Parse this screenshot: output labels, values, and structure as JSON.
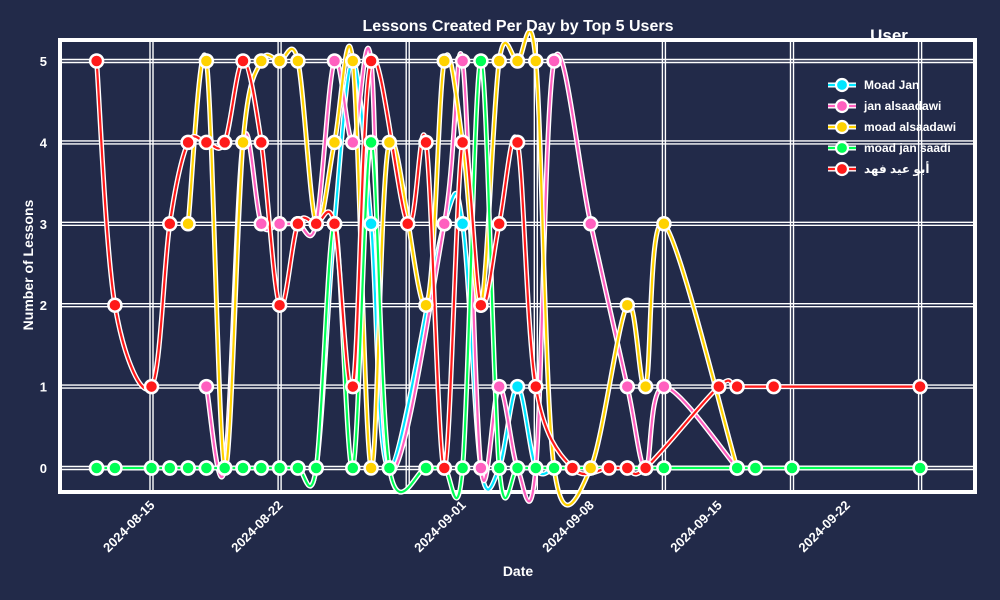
{
  "chart_data": {
    "type": "line",
    "title": "Lessons Created Per Day by Top 5 Users",
    "xlabel": "Date",
    "ylabel": "Number of Lessons",
    "ylim": [
      0,
      5
    ],
    "y_ticks": [
      "0",
      "1",
      "2",
      "3",
      "4",
      "5"
    ],
    "x_ticks": [
      {
        "date": "2024-08-15",
        "label": "2024-08-15"
      },
      {
        "date": "2024-08-22",
        "label": "2024-08-22"
      },
      {
        "date": "2024-09-01",
        "label": "2024-09-01"
      },
      {
        "date": "2024-09-08",
        "label": "2024-09-08"
      },
      {
        "date": "2024-09-15",
        "label": "2024-09-15"
      },
      {
        "date": "2024-09-22",
        "label": "2024-09-22"
      }
    ],
    "x_range": [
      "2024-08-10",
      "2024-09-29"
    ],
    "grid": true,
    "legend_title": "User",
    "legend_position": "top-right",
    "series": [
      {
        "name": "Moad Jan",
        "color": "#00e5ff",
        "points": [
          [
            "2024-08-12",
            0
          ],
          [
            "2024-08-13",
            0
          ],
          [
            "2024-08-15",
            0
          ],
          [
            "2024-08-16",
            0
          ],
          [
            "2024-08-17",
            0
          ],
          [
            "2024-08-18",
            0
          ],
          [
            "2024-08-19",
            0
          ],
          [
            "2024-08-20",
            0
          ],
          [
            "2024-08-21",
            0
          ],
          [
            "2024-08-22",
            0
          ],
          [
            "2024-08-23",
            0
          ],
          [
            "2024-08-24",
            0
          ],
          [
            "2024-08-25",
            3
          ],
          [
            "2024-08-26",
            5
          ],
          [
            "2024-08-27",
            3
          ],
          [
            "2024-08-28",
            0
          ],
          [
            "2024-08-31",
            3
          ],
          [
            "2024-09-01",
            3
          ],
          [
            "2024-09-02",
            0
          ],
          [
            "2024-09-03",
            0
          ],
          [
            "2024-09-04",
            1
          ],
          [
            "2024-09-05",
            0
          ],
          [
            "2024-09-06",
            0
          ]
        ]
      },
      {
        "name": "jan alsaadawi",
        "color": "#ff5fbf",
        "points": [
          [
            "2024-08-18",
            1
          ],
          [
            "2024-08-19",
            0
          ],
          [
            "2024-08-20",
            4
          ],
          [
            "2024-08-21",
            3
          ],
          [
            "2024-08-22",
            3
          ],
          [
            "2024-08-23",
            3
          ],
          [
            "2024-08-24",
            3
          ],
          [
            "2024-08-25",
            5
          ],
          [
            "2024-08-26",
            4
          ],
          [
            "2024-08-27",
            5
          ],
          [
            "2024-08-28",
            0
          ],
          [
            "2024-08-31",
            3
          ],
          [
            "2024-09-01",
            5
          ],
          [
            "2024-09-02",
            0
          ],
          [
            "2024-09-03",
            1
          ],
          [
            "2024-09-04",
            0
          ],
          [
            "2024-09-05",
            0
          ],
          [
            "2024-09-06",
            5
          ],
          [
            "2024-09-08",
            3
          ],
          [
            "2024-09-10",
            1
          ],
          [
            "2024-09-11",
            0
          ],
          [
            "2024-09-12",
            1
          ],
          [
            "2024-09-16",
            0
          ]
        ]
      },
      {
        "name": "moad alsaadawi",
        "color": "#ffd200",
        "points": [
          [
            "2024-08-17",
            3
          ],
          [
            "2024-08-18",
            5
          ],
          [
            "2024-08-19",
            0
          ],
          [
            "2024-08-20",
            4
          ],
          [
            "2024-08-21",
            5
          ],
          [
            "2024-08-22",
            5
          ],
          [
            "2024-08-23",
            5
          ],
          [
            "2024-08-24",
            3
          ],
          [
            "2024-08-25",
            4
          ],
          [
            "2024-08-26",
            5
          ],
          [
            "2024-08-27",
            0
          ],
          [
            "2024-08-28",
            4
          ],
          [
            "2024-08-30",
            2
          ],
          [
            "2024-08-31",
            5
          ],
          [
            "2024-09-01",
            4
          ],
          [
            "2024-09-02",
            2
          ],
          [
            "2024-09-03",
            5
          ],
          [
            "2024-09-04",
            5
          ],
          [
            "2024-09-05",
            5
          ],
          [
            "2024-09-06",
            0
          ],
          [
            "2024-09-08",
            0
          ],
          [
            "2024-09-10",
            2
          ],
          [
            "2024-09-11",
            1
          ],
          [
            "2024-09-12",
            3
          ],
          [
            "2024-09-16",
            0
          ]
        ]
      },
      {
        "name": "moad jan saadi",
        "color": "#00ff55",
        "points": [
          [
            "2024-08-12",
            0
          ],
          [
            "2024-08-13",
            0
          ],
          [
            "2024-08-15",
            0
          ],
          [
            "2024-08-16",
            0
          ],
          [
            "2024-08-17",
            0
          ],
          [
            "2024-08-18",
            0
          ],
          [
            "2024-08-19",
            0
          ],
          [
            "2024-08-20",
            0
          ],
          [
            "2024-08-21",
            0
          ],
          [
            "2024-08-22",
            0
          ],
          [
            "2024-08-23",
            0
          ],
          [
            "2024-08-24",
            0
          ],
          [
            "2024-08-25",
            3
          ],
          [
            "2024-08-26",
            0
          ],
          [
            "2024-08-27",
            4
          ],
          [
            "2024-08-28",
            0
          ],
          [
            "2024-08-30",
            0
          ],
          [
            "2024-08-31",
            0
          ],
          [
            "2024-09-01",
            0
          ],
          [
            "2024-09-02",
            5
          ],
          [
            "2024-09-03",
            0
          ],
          [
            "2024-09-04",
            0
          ],
          [
            "2024-09-05",
            0
          ],
          [
            "2024-09-06",
            0
          ],
          [
            "2024-09-07",
            0
          ],
          [
            "2024-09-10",
            0
          ],
          [
            "2024-09-11",
            0
          ],
          [
            "2024-09-12",
            0
          ],
          [
            "2024-09-16",
            0
          ],
          [
            "2024-09-17",
            0
          ],
          [
            "2024-09-19",
            0
          ],
          [
            "2024-09-26",
            0
          ]
        ]
      },
      {
        "name": "أبو عيد فهد",
        "color": "#ff1a1a",
        "points": [
          [
            "2024-08-12",
            5
          ],
          [
            "2024-08-13",
            2
          ],
          [
            "2024-08-15",
            1
          ],
          [
            "2024-08-16",
            3
          ],
          [
            "2024-08-17",
            4
          ],
          [
            "2024-08-18",
            4
          ],
          [
            "2024-08-19",
            4
          ],
          [
            "2024-08-20",
            5
          ],
          [
            "2024-08-21",
            4
          ],
          [
            "2024-08-22",
            2
          ],
          [
            "2024-08-23",
            3
          ],
          [
            "2024-08-24",
            3
          ],
          [
            "2024-08-25",
            3
          ],
          [
            "2024-08-26",
            1
          ],
          [
            "2024-08-27",
            5
          ],
          [
            "2024-08-29",
            3
          ],
          [
            "2024-08-30",
            4
          ],
          [
            "2024-08-31",
            0
          ],
          [
            "2024-09-01",
            4
          ],
          [
            "2024-09-02",
            2
          ],
          [
            "2024-09-03",
            3
          ],
          [
            "2024-09-04",
            4
          ],
          [
            "2024-09-05",
            1
          ],
          [
            "2024-09-07",
            0
          ],
          [
            "2024-09-09",
            0
          ],
          [
            "2024-09-10",
            0
          ],
          [
            "2024-09-11",
            0
          ],
          [
            "2024-09-15",
            1
          ],
          [
            "2024-09-16",
            1
          ],
          [
            "2024-09-18",
            1
          ],
          [
            "2024-09-26",
            1
          ]
        ]
      }
    ]
  }
}
